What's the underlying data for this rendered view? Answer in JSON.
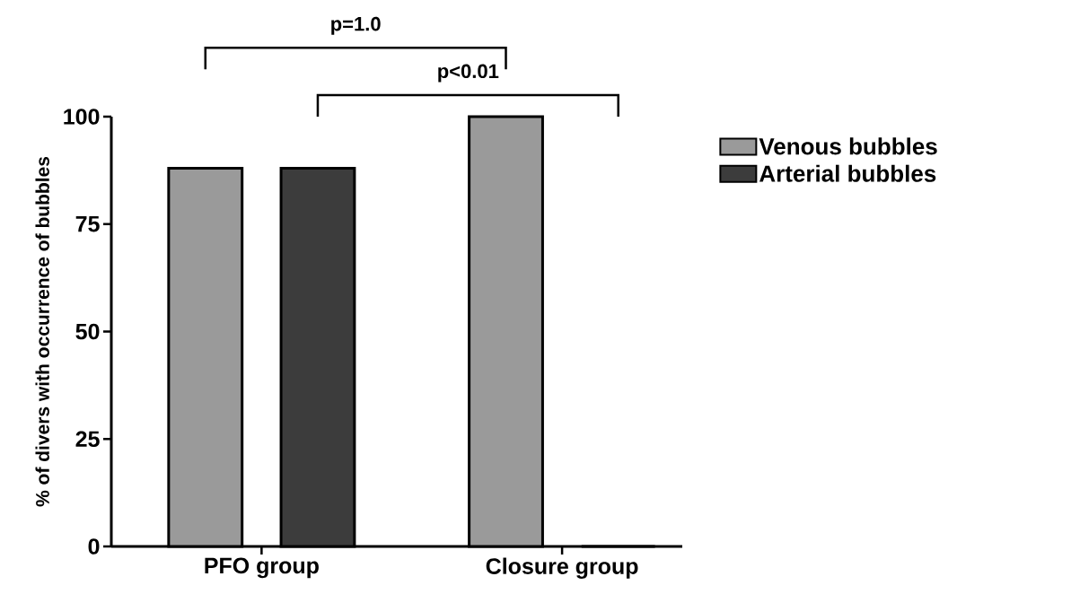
{
  "chart_data": {
    "type": "bar",
    "categories": [
      "PFO group",
      "Closure group"
    ],
    "series": [
      {
        "name": "Venous bubbles",
        "color": "#9a9a9a",
        "values": [
          88,
          100
        ]
      },
      {
        "name": "Arterial bubbles",
        "color": "#3c3c3c",
        "values": [
          88,
          0
        ]
      }
    ],
    "ylabel": "% of divers with occurrence of bubbles",
    "ylim": [
      0,
      100
    ],
    "yticks": [
      0,
      25,
      50,
      75,
      100
    ],
    "annotations": [
      "p=1.0",
      "p<0.01"
    ],
    "legend": "right",
    "grid": false
  }
}
